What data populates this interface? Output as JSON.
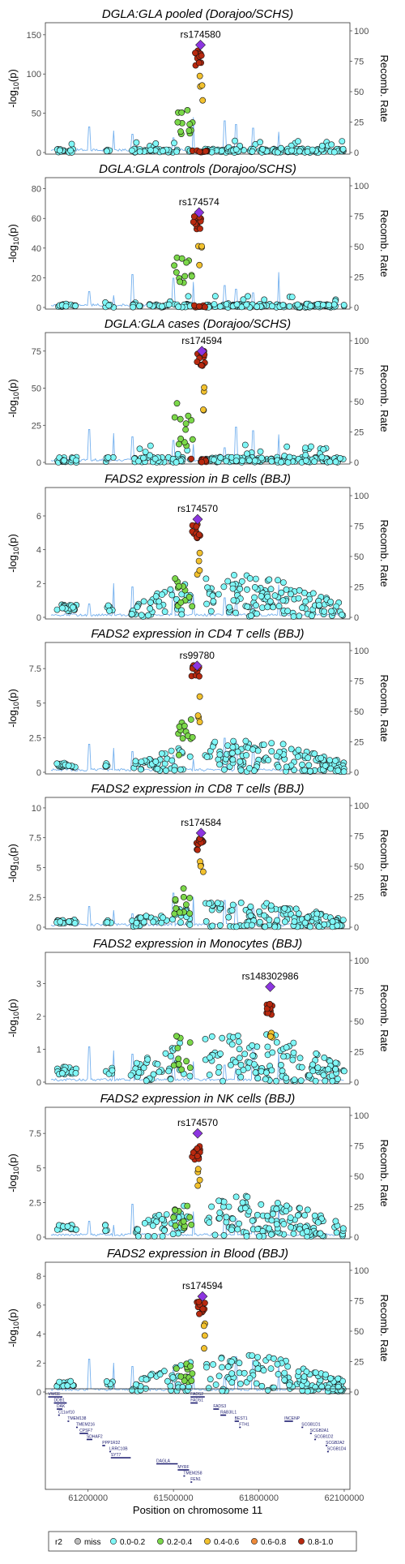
{
  "colors": {
    "miss": "#bdbdbd",
    "r2_0_0.2": "#7ff7f7",
    "r2_0.2_0.4": "#7bd84a",
    "r2_0.4_0.6": "#f2c12e",
    "r2_0.6_0.8": "#ee8a3a",
    "r2_0.8_1.0": "#b8290f",
    "lead": "#8c35e0",
    "recomb": "#74b0ee",
    "gene": "#1a1a6e"
  },
  "chart_data": [
    {
      "type": "scatter",
      "title": "DGLA:GLA pooled (Dorajoo/SCHS)",
      "lead_snp": "rs174580",
      "ylabel": "-log10(p)",
      "y2label": "Recomb. Rate",
      "ylim": [
        0,
        155
      ],
      "yticks": [
        0,
        50,
        100,
        150
      ],
      "y2lim": [
        0,
        100
      ],
      "y2ticks": [
        0,
        25,
        50,
        75,
        100
      ],
      "xlim": [
        61050000,
        62120000
      ],
      "lead_x": 61595000,
      "lead_y": 137,
      "peak_max": 130,
      "cluster_max": 60,
      "bg_max": 15,
      "seed": 11
    },
    {
      "type": "scatter",
      "title": "DGLA:GLA controls (Dorajoo/SCHS)",
      "lead_snp": "rs174574",
      "ylabel": "-log10(p)",
      "y2label": "Recomb. Rate",
      "ylim": [
        0,
        82
      ],
      "yticks": [
        0,
        20,
        40,
        60,
        80
      ],
      "y2lim": [
        0,
        100
      ],
      "y2ticks": [
        0,
        25,
        50,
        75,
        100
      ],
      "xlim": [
        61050000,
        62120000
      ],
      "lead_x": 61590000,
      "lead_y": 64,
      "peak_max": 62,
      "cluster_max": 36,
      "bg_max": 8,
      "seed": 23
    },
    {
      "type": "scatter",
      "title": "DGLA:GLA cases (Dorajoo/SCHS)",
      "lead_snp": "rs174594",
      "ylabel": "-log10(p)",
      "y2label": "Recomb. Rate",
      "ylim": [
        0,
        82
      ],
      "yticks": [
        0,
        25,
        50,
        75
      ],
      "y2lim": [
        0,
        100
      ],
      "y2ticks": [
        0,
        25,
        50,
        75,
        100
      ],
      "xlim": [
        61050000,
        62120000
      ],
      "lead_x": 61600000,
      "lead_y": 75,
      "peak_max": 75,
      "cluster_max": 42,
      "bg_max": 12,
      "seed": 37
    },
    {
      "type": "scatter",
      "title": "FADS2 expression in B cells (BBJ)",
      "lead_snp": "rs174570",
      "ylabel": "-log10(p)",
      "y2label": "Recomb. Rate",
      "ylim": [
        0,
        7.2
      ],
      "yticks": [
        0,
        2,
        4,
        6
      ],
      "y2lim": [
        0,
        100
      ],
      "y2ticks": [
        0,
        25,
        50,
        75,
        100
      ],
      "xlim": [
        61050000,
        62120000
      ],
      "lead_x": 61585000,
      "lead_y": 5.8,
      "peak_max": 5.5,
      "cluster_max": 2.3,
      "bg_max": 2.5,
      "seed": 41
    },
    {
      "type": "scatter",
      "title": "FADS2 expression in CD4 T cells (BBJ)",
      "lead_snp": "rs99780",
      "ylabel": "-log10(p)",
      "y2label": "Recomb. Rate",
      "ylim": [
        0,
        8.8
      ],
      "yticks": [
        0,
        2.5,
        5.0,
        7.5
      ],
      "y2lim": [
        0,
        100
      ],
      "y2ticks": [
        0,
        25,
        50,
        75,
        100
      ],
      "xlim": [
        61050000,
        62120000
      ],
      "lead_x": 61583000,
      "lead_y": 7.7,
      "peak_max": 7.8,
      "cluster_max": 3.9,
      "bg_max": 2.4,
      "seed": 53
    },
    {
      "type": "scatter",
      "title": "FADS2 expression in CD8 T cells (BBJ)",
      "lead_snp": "rs174584",
      "ylabel": "-log10(p)",
      "y2label": "Recomb. Rate",
      "ylim": [
        0,
        10.2
      ],
      "yticks": [
        0,
        2.5,
        5.0,
        7.5,
        10.0
      ],
      "y2lim": [
        0,
        100
      ],
      "y2ticks": [
        0,
        25,
        50,
        75,
        100
      ],
      "xlim": [
        61050000,
        62120000
      ],
      "lead_x": 61597000,
      "lead_y": 7.9,
      "peak_max": 7.5,
      "cluster_max": 3.5,
      "bg_max": 2.2,
      "seed": 67
    },
    {
      "type": "scatter",
      "title": "FADS2 expression in Monocytes (BBJ)",
      "lead_snp": "rs148302986",
      "ylabel": "-log10(p)",
      "y2label": "Recomb. Rate",
      "ylim": [
        0,
        3.7
      ],
      "yticks": [
        0,
        1,
        2,
        3
      ],
      "y2lim": [
        0,
        100
      ],
      "y2ticks": [
        0,
        25,
        50,
        75,
        100
      ],
      "xlim": [
        61050000,
        62120000
      ],
      "lead_x": 61840000,
      "lead_y": 2.9,
      "peak_max": 2.4,
      "cluster_max": 1.4,
      "bg_max": 1.6,
      "seed": 79
    },
    {
      "type": "scatter",
      "title": "FADS2 expression in NK cells (BBJ)",
      "lead_snp": "rs174570",
      "ylabel": "-log10(p)",
      "y2label": "Recomb. Rate",
      "ylim": [
        0,
        8.8
      ],
      "yticks": [
        0,
        2.5,
        5.0,
        7.5
      ],
      "y2lim": [
        0,
        100
      ],
      "y2ticks": [
        0,
        25,
        50,
        75,
        100
      ],
      "xlim": [
        61050000,
        62120000
      ],
      "lead_x": 61585000,
      "lead_y": 7.5,
      "peak_max": 6.6,
      "cluster_max": 2.6,
      "bg_max": 3.0,
      "seed": 83
    },
    {
      "type": "scatter",
      "title": "FADS2 expression in Blood (BBJ)",
      "lead_snp": "rs174594",
      "ylabel": "-log10(p)",
      "y2label": "Recomb. Rate",
      "ylim": [
        0,
        8.4
      ],
      "yticks": [
        0,
        2,
        4,
        6,
        8
      ],
      "y2lim": [
        0,
        100
      ],
      "y2ticks": [
        0,
        25,
        50,
        75,
        100
      ],
      "xlim": [
        61050000,
        62120000
      ],
      "lead_x": 61602000,
      "lead_y": 6.6,
      "peak_max": 6.3,
      "cluster_max": 2.2,
      "bg_max": 2.6,
      "seed": 97
    }
  ],
  "genes_track": {
    "xlim": [
      61050000,
      62120000
    ],
    "xticks": [
      61200000,
      61500000,
      61800000,
      62100000
    ],
    "xlabel": "Position on chromosome 11",
    "genes": [
      {
        "name": "VWCE",
        "start": 61060000,
        "end": 61110000,
        "row": 0
      },
      {
        "name": "DDB1",
        "start": 61080000,
        "end": 61125000,
        "row": 1
      },
      {
        "name": "DAK",
        "start": 61090000,
        "end": 61110000,
        "row": 2
      },
      {
        "name": "C11orf10",
        "start": 61095000,
        "end": 61100000,
        "row": 3
      },
      {
        "name": "TMEM138",
        "start": 61128000,
        "end": 61132000,
        "row": 4
      },
      {
        "name": "TMEM216",
        "start": 61158000,
        "end": 61162000,
        "row": 5
      },
      {
        "name": "CPSF7",
        "start": 61170000,
        "end": 61200000,
        "row": 6
      },
      {
        "name": "SDHAF2",
        "start": 61195000,
        "end": 61215000,
        "row": 7
      },
      {
        "name": "PPP1R32",
        "start": 61250000,
        "end": 61260000,
        "row": 8
      },
      {
        "name": "LRRC10B",
        "start": 61275000,
        "end": 61280000,
        "row": 9
      },
      {
        "name": "SYT7",
        "start": 61280000,
        "end": 61350000,
        "row": 10
      },
      {
        "name": "FADS2",
        "start": 61560000,
        "end": 61610000,
        "row": 0
      },
      {
        "name": "FADS1",
        "start": 61560000,
        "end": 61585000,
        "row": 1
      },
      {
        "name": "FADS3",
        "start": 61640000,
        "end": 61660000,
        "row": 2
      },
      {
        "name": "RAB3IL1",
        "start": 61665000,
        "end": 61685000,
        "row": 3
      },
      {
        "name": "BEST1",
        "start": 61715000,
        "end": 61730000,
        "row": 4
      },
      {
        "name": "FTH1",
        "start": 61731000,
        "end": 61735000,
        "row": 5
      },
      {
        "name": "DAGLA",
        "start": 61440000,
        "end": 61515000,
        "row": 11
      },
      {
        "name": "MYRF",
        "start": 61515000,
        "end": 61555000,
        "row": 12
      },
      {
        "name": "TMEM258",
        "start": 61535000,
        "end": 61538000,
        "row": 13
      },
      {
        "name": "FEN1",
        "start": 61560000,
        "end": 61565000,
        "row": 14
      },
      {
        "name": "INCENP",
        "start": 61890000,
        "end": 61920000,
        "row": 4
      },
      {
        "name": "SCGB1D1",
        "start": 61950000,
        "end": 61952000,
        "row": 5
      },
      {
        "name": "SCGB2A1",
        "start": 61980000,
        "end": 61983000,
        "row": 6
      },
      {
        "name": "SCGB1D2",
        "start": 61995000,
        "end": 61998000,
        "row": 7
      },
      {
        "name": "SCGB2A2",
        "start": 62035000,
        "end": 62038000,
        "row": 8
      },
      {
        "name": "SCGB1D4",
        "start": 62040000,
        "end": 62043000,
        "row": 9
      }
    ]
  },
  "legend": {
    "title": "r2",
    "items": [
      {
        "label": "miss",
        "color_key": "miss"
      },
      {
        "label": "0.0-0.2",
        "color_key": "r2_0_0.2"
      },
      {
        "label": "0.2-0.4",
        "color_key": "r2_0.2_0.4"
      },
      {
        "label": "0.4-0.6",
        "color_key": "r2_0.4_0.6"
      },
      {
        "label": "0.6-0.8",
        "color_key": "r2_0.6_0.8"
      },
      {
        "label": "0.8-1.0",
        "color_key": "r2_0.8_1.0"
      }
    ]
  }
}
